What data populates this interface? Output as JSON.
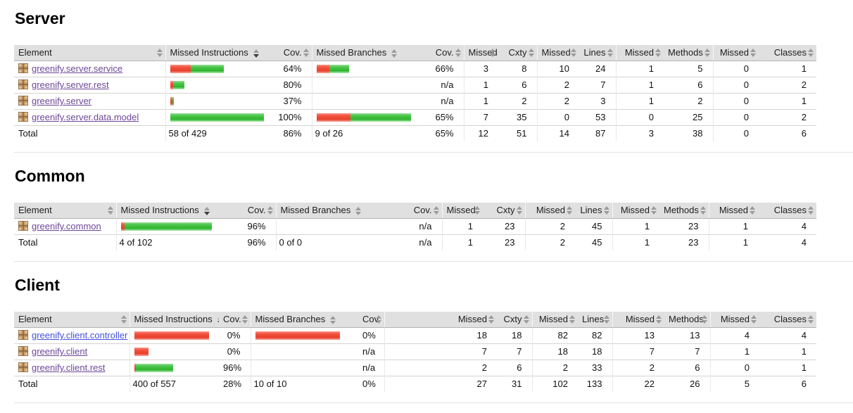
{
  "report": {
    "type_label": "coverage-report"
  },
  "colors": {
    "bar_red": "#ee4130",
    "bar_green": "#35b435",
    "header_bg": "#e0e0e0",
    "link_visited": "#6d4899",
    "link_new": "#4550d8"
  },
  "columns": [
    "Element",
    "Missed Instructions",
    "Cov.",
    "Missed Branches",
    "Cov.",
    "Missed",
    "Cxty",
    "Missed",
    "Lines",
    "Missed",
    "Methods",
    "Missed",
    "Classes"
  ],
  "sort": {
    "column_index": 1,
    "direction": "desc"
  },
  "sections": [
    {
      "title": "Server",
      "rows": [
        {
          "name": "greenify.server.service",
          "link": "visited",
          "instr": {
            "red": 29,
            "green": 47
          },
          "instr_cov": "64%",
          "branch": {
            "red": 18,
            "green": 28
          },
          "branch_cov": "66%",
          "missed_cxty": "3",
          "cxty": "8",
          "missed_lines": "10",
          "lines": "24",
          "missed_methods": "1",
          "methods": "5",
          "missed_classes": "0",
          "classes": "1"
        },
        {
          "name": "greenify.server.rest",
          "link": "visited",
          "instr": {
            "red": 4,
            "green": 16
          },
          "instr_cov": "80%",
          "branch": null,
          "branch_cov": "n/a",
          "missed_cxty": "1",
          "cxty": "6",
          "missed_lines": "2",
          "lines": "7",
          "missed_methods": "1",
          "methods": "6",
          "missed_classes": "0",
          "classes": "2"
        },
        {
          "name": "greenify.server",
          "link": "visited",
          "instr": {
            "red": 3,
            "green": 2
          },
          "instr_cov": "37%",
          "branch": null,
          "branch_cov": "n/a",
          "missed_cxty": "1",
          "cxty": "2",
          "missed_lines": "2",
          "lines": "3",
          "missed_methods": "1",
          "methods": "2",
          "missed_classes": "0",
          "classes": "1"
        },
        {
          "name": "greenify.server.data.model",
          "link": "visited",
          "instr": {
            "red": 0,
            "green": 145
          },
          "instr_cov": "100%",
          "branch": {
            "red": 51,
            "green": 90
          },
          "branch_cov": "65%",
          "missed_cxty": "7",
          "cxty": "35",
          "missed_lines": "0",
          "lines": "53",
          "missed_methods": "0",
          "methods": "25",
          "missed_classes": "0",
          "classes": "2"
        }
      ],
      "total": {
        "label": "Total",
        "instr": "58 of 429",
        "instr_cov": "86%",
        "branch": "9 of 26",
        "branch_cov": "65%",
        "missed_cxty": "12",
        "cxty": "51",
        "missed_lines": "14",
        "lines": "87",
        "missed_methods": "3",
        "methods": "38",
        "missed_classes": "0",
        "classes": "6"
      }
    },
    {
      "title": "Common",
      "rows": [
        {
          "name": "greenify.common",
          "link": "visited",
          "instr": {
            "red": 5,
            "green": 124
          },
          "instr_cov": "96%",
          "branch": null,
          "branch_cov": "n/a",
          "missed_cxty": "1",
          "cxty": "23",
          "missed_lines": "2",
          "lines": "45",
          "missed_methods": "1",
          "methods": "23",
          "missed_classes": "1",
          "classes": "4"
        }
      ],
      "total": {
        "label": "Total",
        "instr": "4 of 102",
        "instr_cov": "96%",
        "branch": "0 of 0",
        "branch_cov": "n/a",
        "missed_cxty": "1",
        "cxty": "23",
        "missed_lines": "2",
        "lines": "45",
        "missed_methods": "1",
        "methods": "23",
        "missed_classes": "1",
        "classes": "4"
      }
    },
    {
      "title": "Client",
      "rows": [
        {
          "name": "greenify.client.controller",
          "link": "new",
          "instr": {
            "red": 117,
            "green": 0
          },
          "instr_cov": "0%",
          "branch": {
            "red": 120,
            "green": 0
          },
          "branch_cov": "0%",
          "missed_cxty": "18",
          "cxty": "18",
          "missed_lines": "82",
          "lines": "82",
          "missed_methods": "13",
          "methods": "13",
          "missed_classes": "4",
          "classes": "4"
        },
        {
          "name": "greenify.client",
          "link": "visited",
          "instr": {
            "red": 20,
            "green": 0
          },
          "instr_cov": "0%",
          "branch": null,
          "branch_cov": "n/a",
          "missed_cxty": "7",
          "cxty": "7",
          "missed_lines": "18",
          "lines": "18",
          "missed_methods": "7",
          "methods": "7",
          "missed_classes": "1",
          "classes": "1"
        },
        {
          "name": "greenify.client.rest",
          "link": "visited",
          "instr": {
            "red": 2,
            "green": 53
          },
          "instr_cov": "96%",
          "branch": null,
          "branch_cov": "n/a",
          "missed_cxty": "2",
          "cxty": "6",
          "missed_lines": "2",
          "lines": "33",
          "missed_methods": "2",
          "methods": "6",
          "missed_classes": "0",
          "classes": "1"
        }
      ],
      "total": {
        "label": "Total",
        "instr": "400 of 557",
        "instr_cov": "28%",
        "branch": "10 of 10",
        "branch_cov": "0%",
        "missed_cxty": "27",
        "cxty": "31",
        "missed_lines": "102",
        "lines": "133",
        "missed_methods": "22",
        "methods": "26",
        "missed_classes": "5",
        "classes": "6"
      }
    }
  ]
}
